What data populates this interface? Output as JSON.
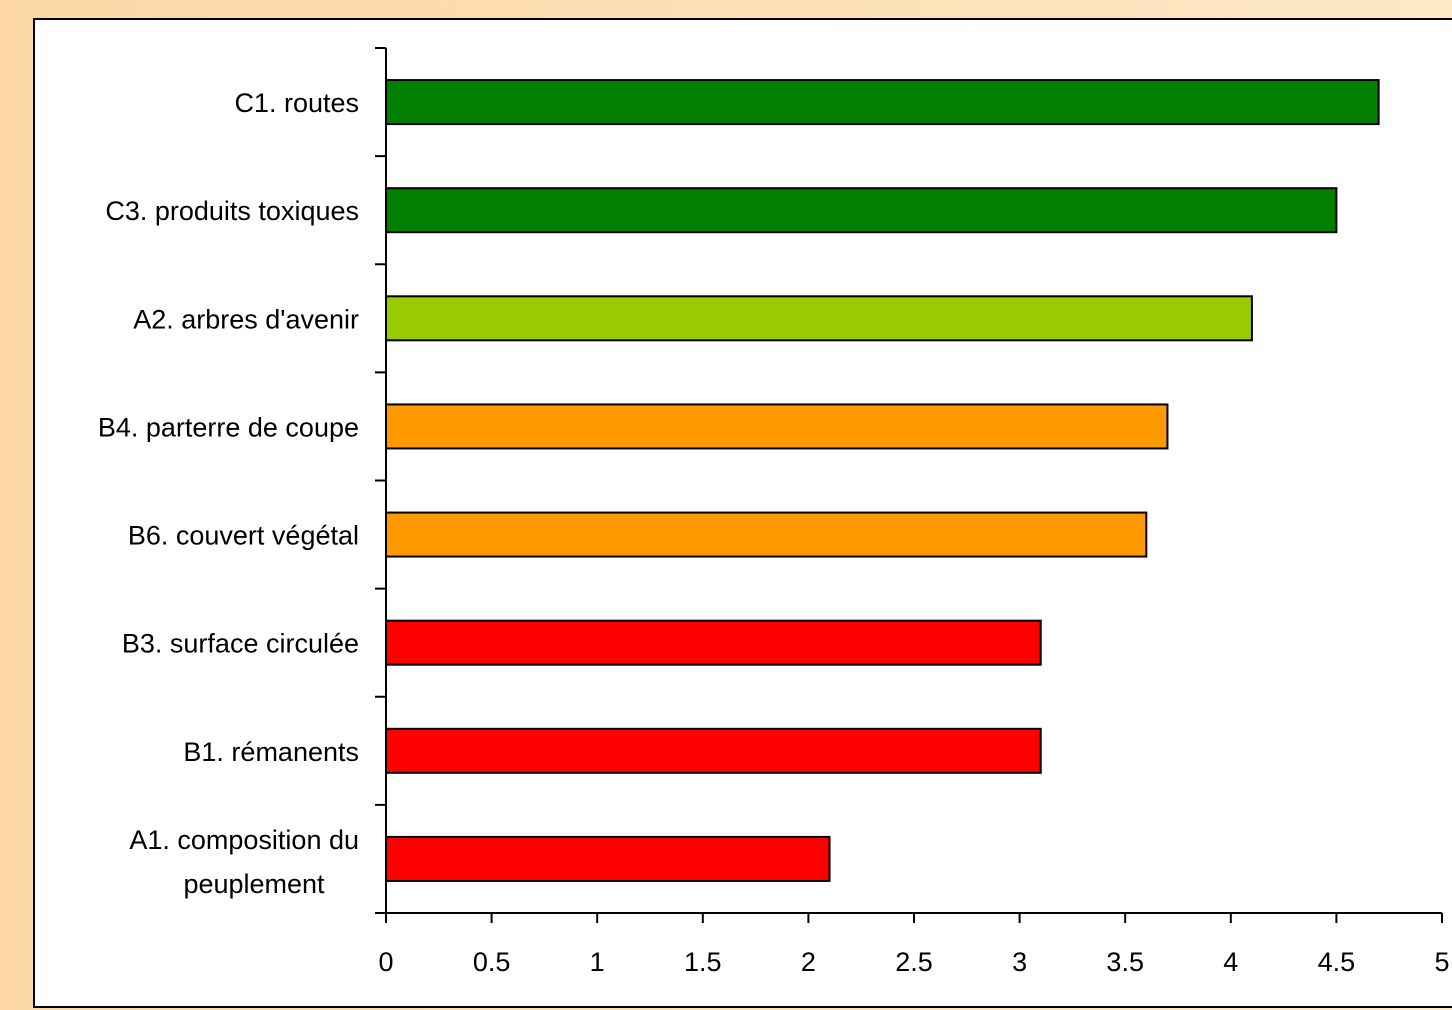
{
  "chart_data": {
    "type": "bar",
    "orientation": "horizontal",
    "categories": [
      "C1. routes",
      "C3. produits toxiques",
      "A2. arbres d'avenir",
      "B4. parterre de coupe",
      "B6. couvert végétal",
      "B3. surface circulée",
      "B1. rémanents",
      "A1. composition du peuplement"
    ],
    "category_label_lines": [
      [
        "C1. routes"
      ],
      [
        "C3. produits toxiques"
      ],
      [
        "A2. arbres d'avenir"
      ],
      [
        "B4. parterre de coupe"
      ],
      [
        "B6. couvert végétal"
      ],
      [
        "B3. surface circulée"
      ],
      [
        "B1. rémanents"
      ],
      [
        "A1. composition du",
        "peuplement"
      ]
    ],
    "values": [
      4.7,
      4.5,
      4.1,
      3.7,
      3.6,
      3.1,
      3.1,
      2.1
    ],
    "bar_colors": [
      "#007f00",
      "#007f00",
      "#99cc00",
      "#ff9900",
      "#ff9900",
      "#ff0000",
      "#ff0000",
      "#ff0000"
    ],
    "xlim": [
      0,
      5
    ],
    "x_ticks": [
      "0",
      "0.5",
      "1",
      "1.5",
      "2",
      "2.5",
      "3",
      "3.5",
      "4",
      "4.5",
      "5"
    ],
    "title": "",
    "xlabel": "",
    "ylabel": "",
    "grid": false,
    "legend": "none"
  }
}
